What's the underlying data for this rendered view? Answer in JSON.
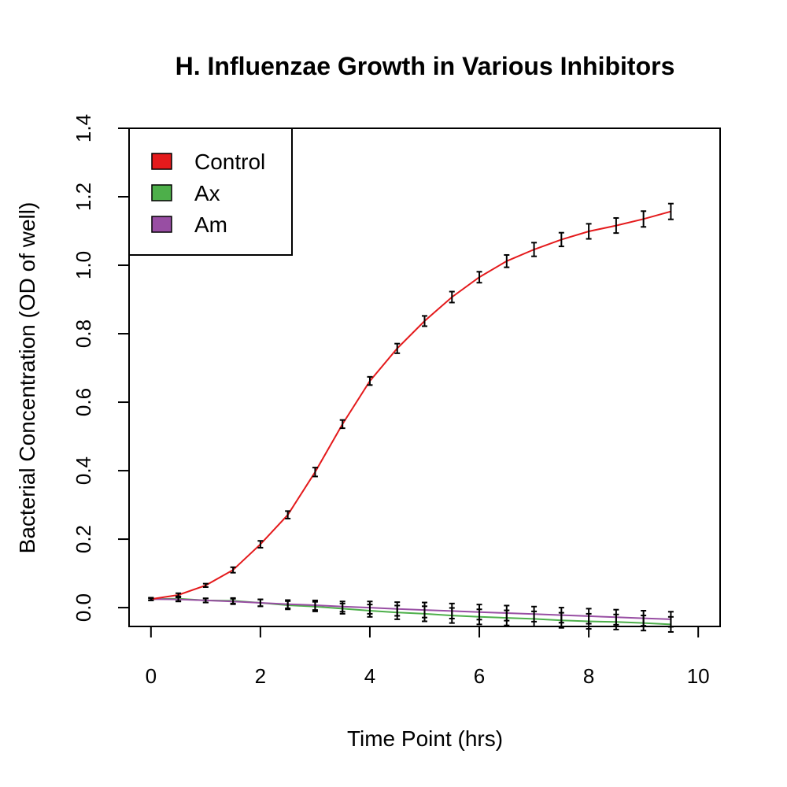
{
  "chart_data": {
    "type": "line",
    "title": "H. Influenzae Growth in Various Inhibitors",
    "xlabel": "Time Point (hrs)",
    "ylabel": "Bacterial Concentration (OD of well)",
    "xlim": [
      -0.4,
      10.4
    ],
    "ylim": [
      -0.055,
      1.4
    ],
    "x_ticks": [
      0,
      2,
      4,
      6,
      8,
      10
    ],
    "y_ticks": [
      0.0,
      0.2,
      0.4,
      0.6,
      0.8,
      1.0,
      1.2,
      1.4
    ],
    "y_tick_labels": [
      "0.0",
      "0.2",
      "0.4",
      "0.6",
      "0.8",
      "1.0",
      "1.2",
      "1.4"
    ],
    "legend_position": "top-left",
    "grid": false,
    "x": [
      0,
      0.5,
      1,
      1.5,
      2,
      2.5,
      3,
      3.5,
      4,
      4.5,
      5,
      5.5,
      6,
      6.5,
      7,
      7.5,
      8,
      8.5,
      9,
      9.5
    ],
    "series": [
      {
        "name": "Control",
        "color": "#e41a1c",
        "values": [
          0.025,
          0.037,
          0.065,
          0.11,
          0.185,
          0.271,
          0.396,
          0.536,
          0.662,
          0.757,
          0.837,
          0.907,
          0.965,
          1.012,
          1.046,
          1.075,
          1.099,
          1.116,
          1.135,
          1.157
        ],
        "errors": [
          0.004,
          0.005,
          0.005,
          0.008,
          0.01,
          0.011,
          0.013,
          0.012,
          0.012,
          0.014,
          0.015,
          0.016,
          0.016,
          0.018,
          0.02,
          0.02,
          0.022,
          0.022,
          0.023,
          0.023
        ]
      },
      {
        "name": "Ax",
        "color": "#4daf4a",
        "values": [
          0.025,
          0.026,
          0.021,
          0.02,
          0.014,
          0.007,
          0.003,
          -0.003,
          -0.009,
          -0.014,
          -0.018,
          -0.023,
          -0.027,
          -0.03,
          -0.033,
          -0.037,
          -0.04,
          -0.042,
          -0.045,
          -0.049
        ],
        "errors": [
          0.003,
          0.007,
          0.006,
          0.008,
          0.01,
          0.012,
          0.014,
          0.015,
          0.018,
          0.02,
          0.022,
          0.022,
          0.022,
          0.022,
          0.022,
          0.022,
          0.022,
          0.022,
          0.022,
          0.022
        ]
      },
      {
        "name": "Am",
        "color": "#984ea3",
        "values": [
          0.025,
          0.024,
          0.021,
          0.018,
          0.014,
          0.01,
          0.007,
          0.003,
          0.0,
          -0.004,
          -0.007,
          -0.01,
          -0.013,
          -0.016,
          -0.019,
          -0.022,
          -0.025,
          -0.028,
          -0.031,
          -0.034
        ],
        "errors": [
          0.003,
          0.006,
          0.006,
          0.008,
          0.01,
          0.012,
          0.014,
          0.015,
          0.018,
          0.02,
          0.022,
          0.022,
          0.022,
          0.022,
          0.022,
          0.022,
          0.022,
          0.022,
          0.022,
          0.022
        ]
      }
    ]
  }
}
